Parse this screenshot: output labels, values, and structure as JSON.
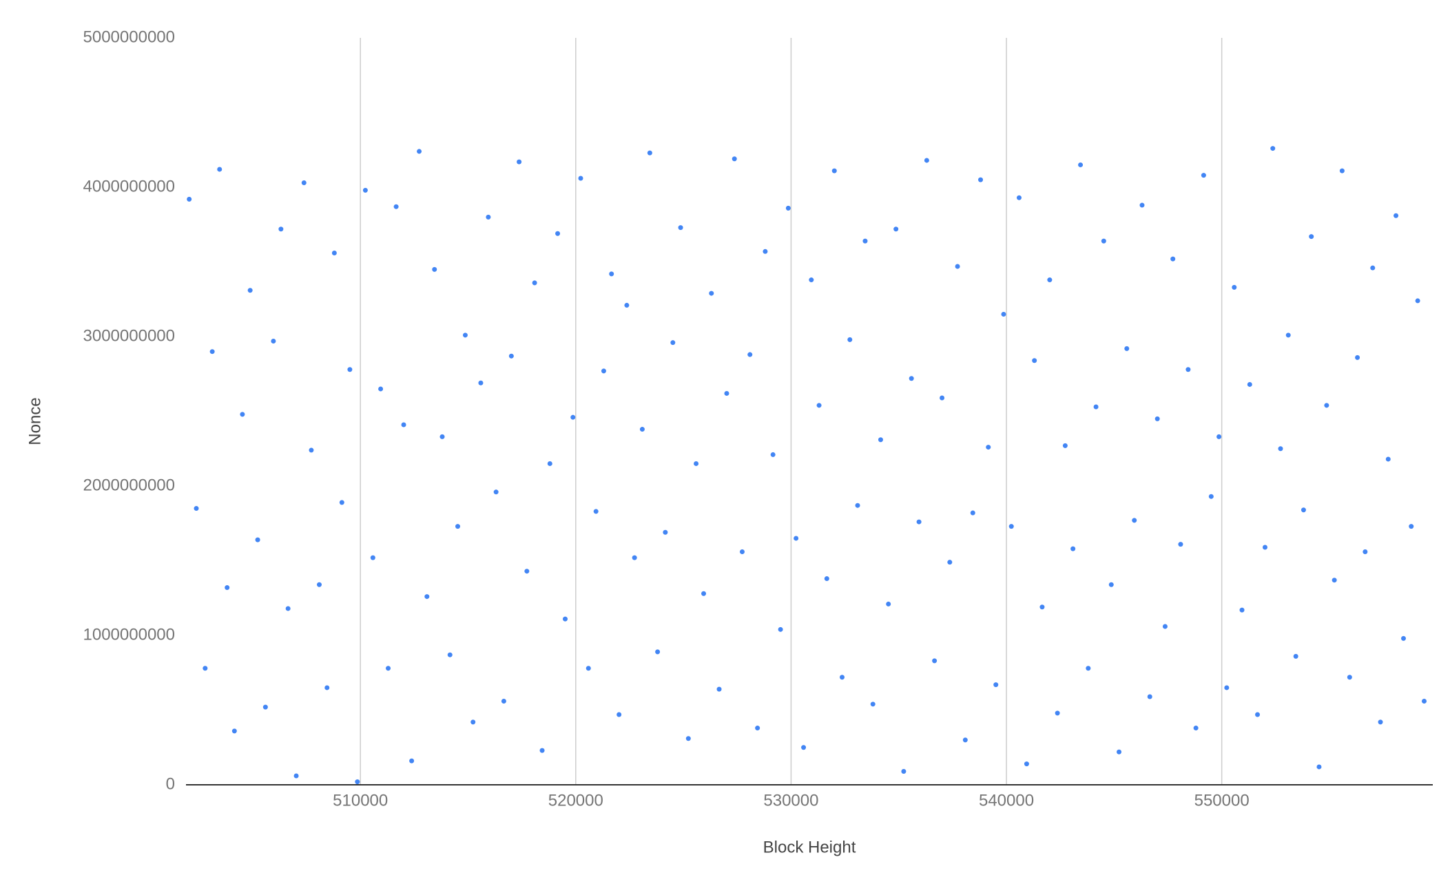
{
  "chart_data": {
    "type": "scatter",
    "x_label": "Block Height",
    "y_label": "Nonce",
    "xlim": [
      501900,
      559800
    ],
    "xticks": [
      510000,
      520000,
      530000,
      540000,
      550000
    ],
    "ylim": [
      0,
      5000000000
    ],
    "yticks": [
      0,
      1000000000,
      2000000000,
      3000000000,
      4000000000,
      5000000000
    ],
    "grid": true,
    "color": "#4285f4",
    "x": [
      502050,
      502380,
      502790,
      503120,
      503460,
      503810,
      504150,
      504520,
      504880,
      505230,
      505590,
      505960,
      506310,
      506640,
      507020,
      507380,
      507720,
      508090,
      508450,
      508790,
      509140,
      509510,
      509860,
      510230,
      510580,
      510940,
      511290,
      511660,
      512010,
      512380,
      512730,
      513090,
      513440,
      513800,
      514160,
      514520,
      514870,
      515230,
      515590,
      515940,
      516300,
      516660,
      517010,
      517370,
      517730,
      518090,
      518440,
      518800,
      519160,
      519510,
      519870,
      520230,
      520590,
      520940,
      521300,
      521660,
      522010,
      522370,
      522730,
      523090,
      523440,
      523800,
      524160,
      524510,
      524870,
      525230,
      525590,
      525940,
      526300,
      526660,
      527010,
      527370,
      527730,
      528090,
      528440,
      528800,
      529160,
      529510,
      529870,
      530230,
      530580,
      530940,
      531300,
      531660,
      532010,
      532370,
      532730,
      533090,
      533440,
      533800,
      534160,
      534520,
      534870,
      535230,
      535590,
      535940,
      536300,
      536660,
      537010,
      537370,
      537730,
      538090,
      538440,
      538800,
      539160,
      539510,
      539870,
      540230,
      540590,
      540940,
      541300,
      541660,
      542010,
      542370,
      542730,
      543090,
      543440,
      543800,
      544160,
      544520,
      544870,
      545230,
      545590,
      545940,
      546300,
      546660,
      547010,
      547370,
      547730,
      548090,
      548440,
      548800,
      549160,
      549510,
      549870,
      550230,
      550580,
      550940,
      551300,
      551660,
      552010,
      552370,
      552730,
      553090,
      553440,
      553800,
      554160,
      554520,
      554870,
      555230,
      555590,
      555940,
      556300,
      556660,
      557010,
      557370,
      557730,
      558090,
      558440,
      558800,
      559100,
      559400
    ],
    "values": [
      3920000000,
      1850000000,
      780000000,
      2900000000,
      4120000000,
      1320000000,
      360000000,
      2480000000,
      3310000000,
      1640000000,
      520000000,
      2970000000,
      3720000000,
      1180000000,
      60000000,
      4030000000,
      2240000000,
      1340000000,
      650000000,
      3560000000,
      1890000000,
      2780000000,
      20000000,
      3980000000,
      1520000000,
      2650000000,
      780000000,
      3870000000,
      2410000000,
      160000000,
      4240000000,
      1260000000,
      3450000000,
      2330000000,
      870000000,
      1730000000,
      3010000000,
      420000000,
      2690000000,
      3800000000,
      1960000000,
      560000000,
      2870000000,
      4170000000,
      1430000000,
      3360000000,
      230000000,
      2150000000,
      3690000000,
      1110000000,
      2460000000,
      4060000000,
      780000000,
      1830000000,
      2770000000,
      3420000000,
      470000000,
      3210000000,
      1520000000,
      2380000000,
      4230000000,
      890000000,
      1690000000,
      2960000000,
      3730000000,
      310000000,
      2150000000,
      1280000000,
      3290000000,
      640000000,
      2620000000,
      4190000000,
      1560000000,
      2880000000,
      380000000,
      3570000000,
      2210000000,
      1040000000,
      3860000000,
      1650000000,
      250000000,
      3380000000,
      2540000000,
      1380000000,
      4110000000,
      720000000,
      2980000000,
      1870000000,
      3640000000,
      540000000,
      2310000000,
      1210000000,
      3720000000,
      90000000,
      2720000000,
      1760000000,
      4180000000,
      830000000,
      2590000000,
      1490000000,
      3470000000,
      300000000,
      1820000000,
      4050000000,
      2260000000,
      670000000,
      3150000000,
      1730000000,
      3930000000,
      140000000,
      2840000000,
      1190000000,
      3380000000,
      480000000,
      2270000000,
      1580000000,
      4150000000,
      780000000,
      2530000000,
      3640000000,
      1340000000,
      220000000,
      2920000000,
      1770000000,
      3880000000,
      590000000,
      2450000000,
      1060000000,
      3520000000,
      1610000000,
      2780000000,
      380000000,
      4080000000,
      1930000000,
      2330000000,
      650000000,
      3330000000,
      1170000000,
      2680000000,
      470000000,
      1590000000,
      4260000000,
      2250000000,
      3010000000,
      860000000,
      1840000000,
      3670000000,
      120000000,
      2540000000,
      1370000000,
      4110000000,
      720000000,
      2860000000,
      1560000000,
      3460000000,
      420000000,
      2180000000,
      3810000000,
      980000000,
      1730000000,
      3240000000,
      560000000
    ]
  }
}
